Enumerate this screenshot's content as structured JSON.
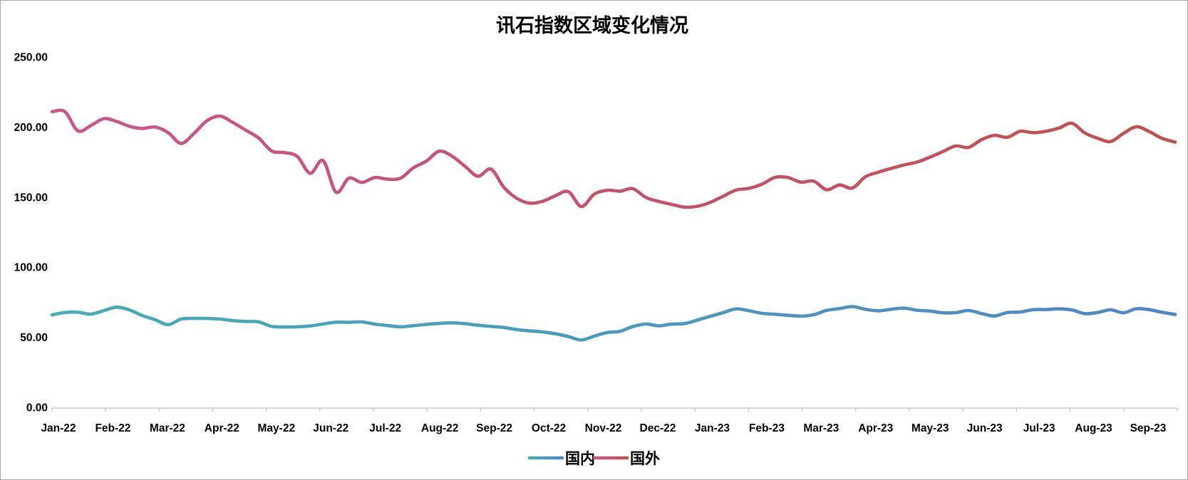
{
  "chart": {
    "title": "讯石指数区域变化情况"
  },
  "axis": {
    "y_tick_labels": [
      "250.00",
      "200.00",
      "150.00",
      "100.00",
      "50.00",
      "0.00"
    ],
    "axis_color": "#c9c9c9"
  },
  "chart_data": {
    "type": "line",
    "title": "讯石指数区域变化情况",
    "xlabel": "",
    "ylabel": "",
    "ylim": [
      0,
      250
    ],
    "y_ticks": [
      250,
      200,
      150,
      100,
      50,
      0
    ],
    "grid": false,
    "smooth": true,
    "sampling": "weekly",
    "legend_position": "bottom",
    "categories": [
      "Jan-22",
      "Feb-22",
      "Mar-22",
      "Apr-22",
      "May-22",
      "Jun-22",
      "Jul-22",
      "Aug-22",
      "Sep-22",
      "Oct-22",
      "Nov-22",
      "Dec-22",
      "Jan-23",
      "Feb-23",
      "Mar-23",
      "Apr-23",
      "May-23",
      "Jun-23",
      "Jul-23",
      "Aug-23",
      "Sep-23"
    ],
    "series": [
      {
        "name": "国内",
        "color_start": "#45adb8",
        "color_end": "#4e86c6",
        "values": [
          66.5,
          68.2,
          68.4,
          67.0,
          69.5,
          72.0,
          70.0,
          66.0,
          63.0,
          59.5,
          63.5,
          64.0,
          63.9,
          63.5,
          62.4,
          61.8,
          61.5,
          58.3,
          57.9,
          58.0,
          58.6,
          60.0,
          61.3,
          61.2,
          61.5,
          59.9,
          58.9,
          58.0,
          58.8,
          59.7,
          60.4,
          60.8,
          60.2,
          59.1,
          58.3,
          57.5,
          56.0,
          55.1,
          54.3,
          53.0,
          51.0,
          48.6,
          51.3,
          53.9,
          54.8,
          58.2,
          60.0,
          58.7,
          59.9,
          60.3,
          62.8,
          65.5,
          68.1,
          70.8,
          69.4,
          67.6,
          66.9,
          66.2,
          65.6,
          66.6,
          69.7,
          71.0,
          72.4,
          70.5,
          69.4,
          70.5,
          71.3,
          69.8,
          69.2,
          68.0,
          68.1,
          69.6,
          67.5,
          65.7,
          68.2,
          68.5,
          70.2,
          70.3,
          70.8,
          70.0,
          67.4,
          68.2,
          70.1,
          68.0,
          70.9,
          70.2,
          68.3,
          66.8
        ]
      },
      {
        "name": "国外",
        "color_start": "#c9568c",
        "color_end": "#c0504d",
        "values": [
          211.5,
          211.5,
          197.8,
          201.5,
          206.5,
          204.5,
          201.0,
          199.5,
          200.5,
          196.5,
          188.8,
          196.0,
          205.0,
          208.3,
          203.8,
          198.3,
          192.8,
          183.5,
          182.3,
          179.5,
          167.5,
          176.5,
          154.0,
          164.0,
          161.0,
          164.5,
          163.3,
          164.0,
          171.5,
          176.2,
          183.3,
          179.6,
          172.4,
          165.4,
          170.5,
          157.5,
          149.7,
          146.2,
          147.5,
          151.5,
          154.4,
          143.8,
          152.6,
          155.4,
          154.8,
          156.5,
          150.3,
          147.4,
          145.3,
          143.4,
          144.0,
          146.8,
          151.2,
          155.6,
          156.8,
          159.8,
          164.6,
          164.5,
          161.2,
          161.9,
          155.8,
          159.2,
          157.0,
          165.0,
          168.3,
          171.0,
          173.5,
          175.5,
          179.0,
          183.0,
          187.0,
          186.0,
          191.5,
          194.6,
          193.2,
          197.5,
          196.5,
          197.5,
          199.8,
          203.2,
          196.3,
          192.5,
          190.2,
          196.0,
          200.7,
          197.2,
          192.4,
          189.8
        ]
      }
    ]
  }
}
